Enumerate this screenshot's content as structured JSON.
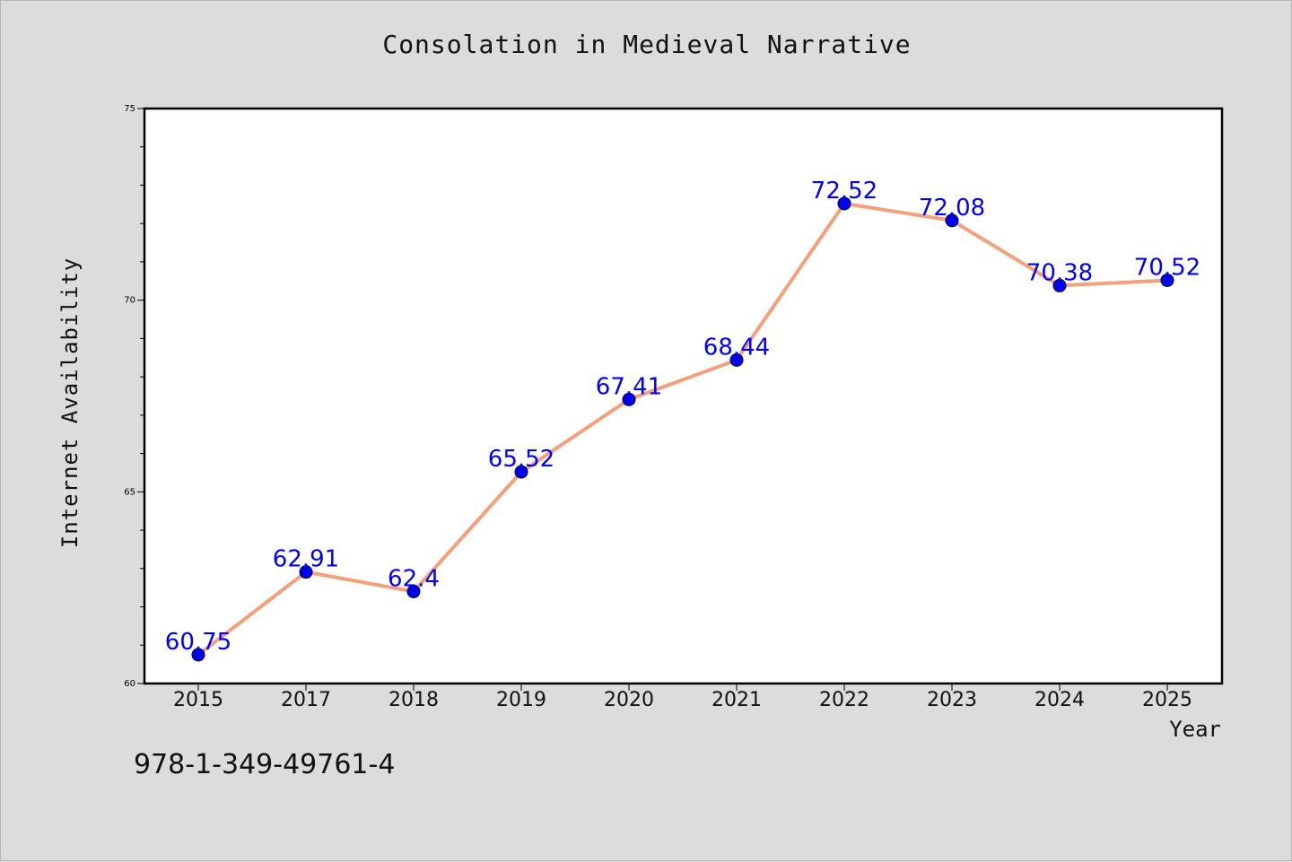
{
  "chart_data": {
    "type": "line",
    "title": "Consolation in Medieval Narrative",
    "xlabel": "Year",
    "ylabel": "Internet Availability",
    "categories": [
      "2015",
      "2017",
      "2018",
      "2019",
      "2020",
      "2021",
      "2022",
      "2023",
      "2024",
      "2025"
    ],
    "series": [
      {
        "values": [
          60.75,
          62.91,
          62.4,
          65.52,
          67.41,
          68.44,
          72.52,
          72.08,
          70.38,
          70.52
        ],
        "labels": [
          "60.75",
          "62.91",
          "62.4",
          "65.52",
          "67.41",
          "68.44",
          "72.52",
          "72.08",
          "70.38",
          "70.52"
        ],
        "color": "#f4a07a",
        "marker_color": "#0000ee"
      }
    ],
    "ylim": [
      60,
      75
    ],
    "yticks": [
      "60",
      "65",
      "70",
      "75"
    ],
    "grid": false,
    "legend": "none",
    "data_label_color": "#0000ff"
  },
  "footer": {
    "isbn": "978-1-349-49761-4"
  }
}
